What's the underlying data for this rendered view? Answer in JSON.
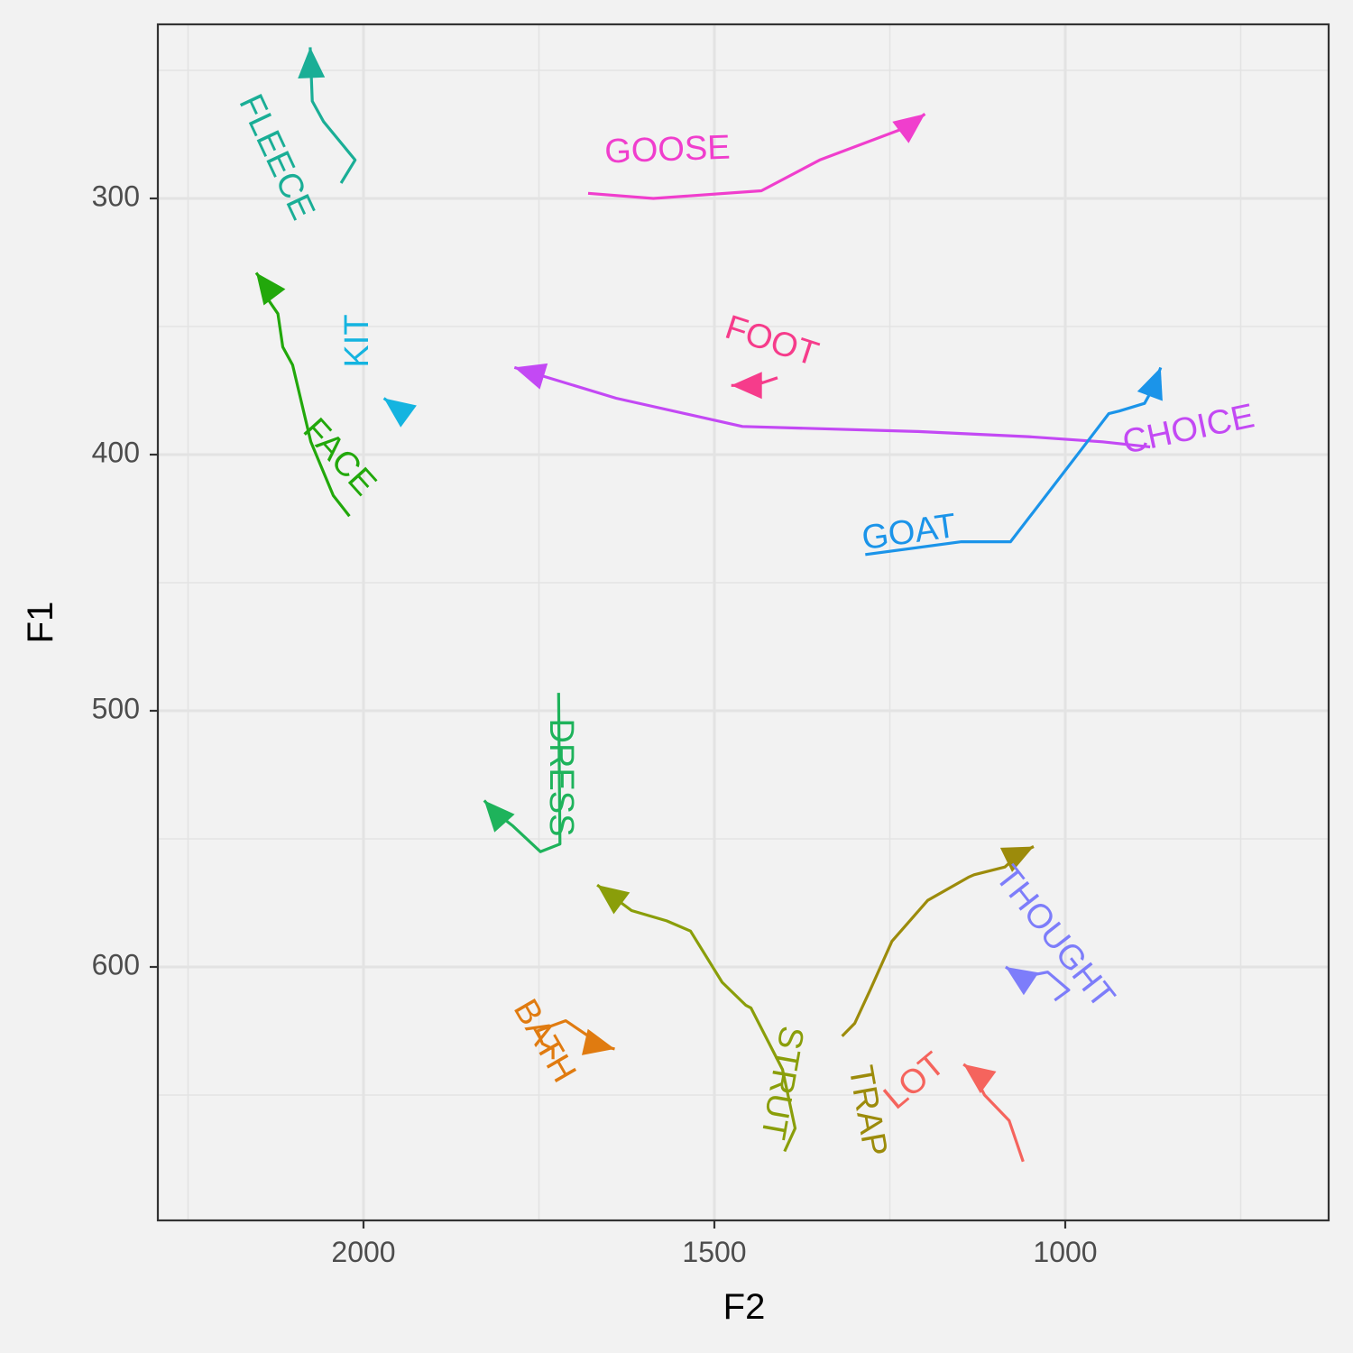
{
  "chart_data": {
    "type": "line",
    "xlabel": "F2",
    "ylabel": "F1",
    "x_reversed": true,
    "y_reversed": true,
    "xlim": [
      2250,
      917
    ],
    "ylim": [
      250,
      693
    ],
    "xticks": [
      2000,
      1500,
      1000
    ],
    "yticks": [
      300,
      400,
      500,
      600
    ],
    "grid": true,
    "legend": "none",
    "series": [
      {
        "name": "FLEECE",
        "color": "#1aae96",
        "points": [
          [
            2032,
            294
          ],
          [
            2012,
            285
          ],
          [
            2057,
            270
          ],
          [
            2073,
            262
          ],
          [
            2076,
            241
          ]
        ]
      },
      {
        "name": "GOOSE",
        "color": "#f03ecd",
        "points": [
          [
            1680,
            298
          ],
          [
            1587,
            300
          ],
          [
            1433,
            297
          ],
          [
            1350,
            285
          ],
          [
            1224,
            272
          ],
          [
            1200,
            267
          ]
        ]
      },
      {
        "name": "FACE",
        "color": "#22a80b",
        "points": [
          [
            2020,
            424
          ],
          [
            2043,
            416
          ],
          [
            2075,
            395
          ],
          [
            2101,
            365
          ],
          [
            2115,
            358
          ],
          [
            2122,
            345
          ],
          [
            2137,
            339
          ],
          [
            2142,
            333
          ],
          [
            2153,
            329
          ]
        ]
      },
      {
        "name": "KIT",
        "color": "#14b4e0",
        "points": [
          [
            1947,
            386
          ],
          [
            1961,
            380
          ],
          [
            1971,
            378
          ]
        ]
      },
      {
        "name": "FOOT",
        "color": "#f63c8b",
        "points": [
          [
            1410,
            370
          ],
          [
            1432,
            372
          ],
          [
            1438,
            370
          ],
          [
            1450,
            373
          ],
          [
            1476,
            373
          ]
        ]
      },
      {
        "name": "CHOICE",
        "color": "#c349f4",
        "points": [
          [
            879,
            397
          ],
          [
            947,
            395
          ],
          [
            1053,
            393
          ],
          [
            1210,
            391
          ],
          [
            1460,
            389
          ],
          [
            1640,
            378
          ],
          [
            1785,
            366
          ]
        ]
      },
      {
        "name": "GOAT",
        "color": "#1b94e9",
        "points": [
          [
            1285,
            439
          ],
          [
            1148,
            434
          ],
          [
            1078,
            434
          ],
          [
            1033,
            418
          ],
          [
            977,
            398
          ],
          [
            938,
            384
          ],
          [
            923,
            383
          ],
          [
            887,
            380
          ],
          [
            875,
            374
          ],
          [
            864,
            366
          ]
        ]
      },
      {
        "name": "DRESS",
        "color": "#1eb35b",
        "points": [
          [
            1722,
            493
          ],
          [
            1720,
            552
          ],
          [
            1748,
            555
          ],
          [
            1787,
            545
          ],
          [
            1815,
            539
          ],
          [
            1828,
            535
          ]
        ]
      },
      {
        "name": "THOUGHT",
        "color": "#7d7dfa",
        "points": [
          [
            1015,
            613
          ],
          [
            995,
            609
          ],
          [
            1025,
            602
          ],
          [
            1063,
            604
          ],
          [
            1085,
            600
          ]
        ]
      },
      {
        "name": "TRAP",
        "color": "#9c8b0b",
        "points": [
          [
            1318,
            627
          ],
          [
            1300,
            622
          ],
          [
            1278,
            609
          ],
          [
            1247,
            590
          ],
          [
            1196,
            574
          ],
          [
            1138,
            565
          ],
          [
            1130,
            564
          ],
          [
            1086,
            561
          ],
          [
            1066,
            556
          ],
          [
            1060,
            555
          ],
          [
            1045,
            553
          ]
        ]
      },
      {
        "name": "STRUT",
        "color": "#8a9e0a",
        "points": [
          [
            1400,
            672
          ],
          [
            1385,
            663
          ],
          [
            1403,
            640
          ],
          [
            1448,
            616
          ],
          [
            1455,
            615
          ],
          [
            1489,
            606
          ],
          [
            1534,
            586
          ],
          [
            1568,
            582
          ],
          [
            1618,
            578
          ],
          [
            1667,
            568
          ]
        ]
      },
      {
        "name": "LOT",
        "color": "#f5645d",
        "points": [
          [
            1060,
            676
          ],
          [
            1080,
            660
          ],
          [
            1115,
            650
          ],
          [
            1130,
            642
          ],
          [
            1135,
            640
          ],
          [
            1145,
            638
          ]
        ]
      },
      {
        "name": "BATH",
        "color": "#e07b10",
        "points": [
          [
            1730,
            636
          ],
          [
            1730,
            632
          ],
          [
            1745,
            630
          ],
          [
            1752,
            625
          ],
          [
            1712,
            621
          ],
          [
            1658,
            631
          ],
          [
            1642,
            632
          ]
        ]
      }
    ],
    "labels": [
      {
        "text": "GOOSE",
        "series": 1
      },
      {
        "text": "FACE",
        "series": 2
      },
      {
        "text": "KIT",
        "series": 3
      },
      {
        "text": "FOOT",
        "series": 4
      },
      {
        "text": "CHOICE",
        "series": 5
      },
      {
        "text": "GOAT",
        "series": 6
      },
      {
        "text": "DRESS",
        "series": 7
      },
      {
        "text": "THOUGHT",
        "series": 8
      },
      {
        "text": "LOT",
        "series": 11
      },
      {
        "text": "FLEECE",
        "series": 0
      },
      {
        "text": "TRAP",
        "series": 9
      },
      {
        "text": "STRUT",
        "series": 10
      },
      {
        "text": "BATH",
        "series": 12
      }
    ]
  }
}
